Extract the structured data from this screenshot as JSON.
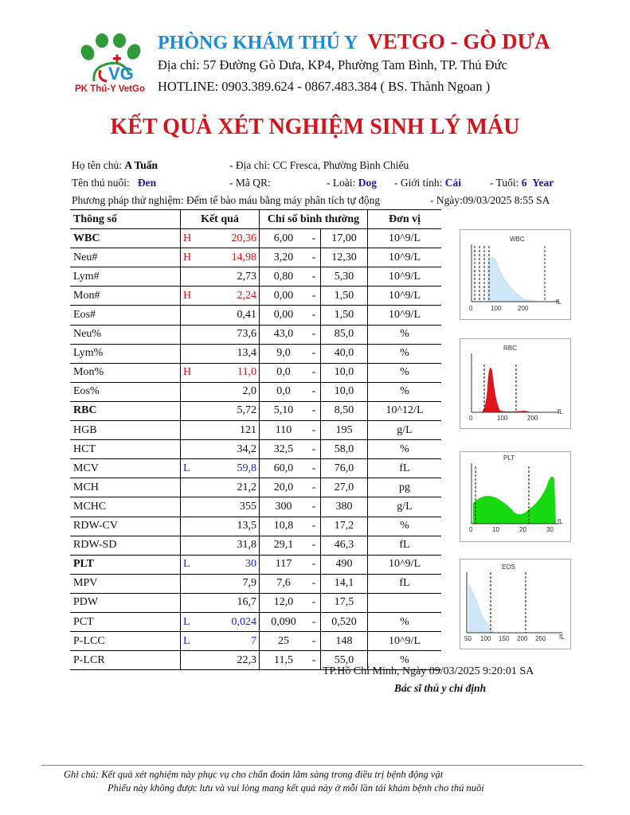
{
  "header": {
    "logo_text": "PK Thú-Y VetGo",
    "title_part1": "PHÒNG KHÁM THÚ Y",
    "title_part2": "VETGO - GÒ DƯA",
    "address": "Địa chỉ: 57 Đường Gò Dưa, KP4, Phường Tam Bình, TP. Thủ Đức",
    "hotline": "HOTLINE: 0903.389.624 - 0867.483.384 ( BS. Thành Ngoan )",
    "brand_colors": {
      "blue": "#1b8ad8",
      "red": "#d4131b",
      "green": "#2e9a3a"
    }
  },
  "document_title": "KẾT QUẢ XÉT NGHIỆM SINH LÝ MÁU",
  "info": {
    "owner_label": "Họ tên chủ:",
    "owner_value": "A Tuấn",
    "address_label": "- Địa chỉ:",
    "address_value": "CC Fresca, Phường Bình Chiểu",
    "pet_label": "Tên thú nuôi:",
    "pet_value": "Đen",
    "qr_label": "- Mã QR:",
    "species_label": "- Loài:",
    "species_value": "Dog",
    "sex_label": "- Giới tính:",
    "sex_value": "Cái",
    "age_label": "- Tuổi:",
    "age_value": "6",
    "age_unit": "Year",
    "method_label": "Phương pháp thử nghiệm:",
    "method_value": "Đếm tế bào máu bằng máy phân tích tự động",
    "date_label": "- Ngày:",
    "date_value": "09/03/2025 8:55 SA"
  },
  "table": {
    "headers": {
      "param": "Thông số",
      "result": "Kết quả",
      "normal": "Chỉ số bình thường",
      "unit": "Đơn vị"
    },
    "rows": [
      {
        "name": "WBC",
        "flag": "H",
        "value": "20,36",
        "low": "6,00",
        "high": "17,00",
        "unit": "10^9/L",
        "bold": true
      },
      {
        "name": "Neu#",
        "flag": "H",
        "value": "14,98",
        "low": "3,20",
        "high": "12,30",
        "unit": "10^9/L"
      },
      {
        "name": "Lym#",
        "flag": "",
        "value": "2,73",
        "low": "0,80",
        "high": "5,30",
        "unit": "10^9/L"
      },
      {
        "name": "Mon#",
        "flag": "H",
        "value": "2,24",
        "low": "0,00",
        "high": "1,50",
        "unit": "10^9/L"
      },
      {
        "name": "Eos#",
        "flag": "",
        "value": "0,41",
        "low": "0,00",
        "high": "1,50",
        "unit": "10^9/L"
      },
      {
        "name": "Neu%",
        "flag": "",
        "value": "73,6",
        "low": "43,0",
        "high": "85,0",
        "unit": "%"
      },
      {
        "name": "Lym%",
        "flag": "",
        "value": "13,4",
        "low": "9,0",
        "high": "40,0",
        "unit": "%"
      },
      {
        "name": "Mon%",
        "flag": "H",
        "value": "11,0",
        "low": "0,0",
        "high": "10,0",
        "unit": "%"
      },
      {
        "name": "Eos%",
        "flag": "",
        "value": "2,0",
        "low": "0,0",
        "high": "10,0",
        "unit": "%"
      },
      {
        "name": "RBC",
        "flag": "",
        "value": "5,72",
        "low": "5,10",
        "high": "8,50",
        "unit": "10^12/L",
        "bold": true
      },
      {
        "name": "HGB",
        "flag": "",
        "value": "121",
        "low": "110",
        "high": "195",
        "unit": "g/L"
      },
      {
        "name": "HCT",
        "flag": "",
        "value": "34,2",
        "low": "32,5",
        "high": "58,0",
        "unit": "%"
      },
      {
        "name": "MCV",
        "flag": "L",
        "value": "59,8",
        "low": "60,0",
        "high": "76,0",
        "unit": "fL"
      },
      {
        "name": "MCH",
        "flag": "",
        "value": "21,2",
        "low": "20,0",
        "high": "27,0",
        "unit": "pg"
      },
      {
        "name": "MCHC",
        "flag": "",
        "value": "355",
        "low": "300",
        "high": "380",
        "unit": "g/L"
      },
      {
        "name": "RDW-CV",
        "flag": "",
        "value": "13,5",
        "low": "10,8",
        "high": "17,2",
        "unit": "%"
      },
      {
        "name": "RDW-SD",
        "flag": "",
        "value": "31,8",
        "low": "29,1",
        "high": "46,3",
        "unit": "fL"
      },
      {
        "name": "PLT",
        "flag": "L",
        "value": "30",
        "low": "117",
        "high": "490",
        "unit": "10^9/L",
        "bold": true
      },
      {
        "name": "MPV",
        "flag": "",
        "value": "7,9",
        "low": "7,6",
        "high": "14,1",
        "unit": "fL"
      },
      {
        "name": "PDW",
        "flag": "",
        "value": "16,7",
        "low": "12,0",
        "high": "17,5",
        "unit": ""
      },
      {
        "name": "PCT",
        "flag": "L",
        "value": "0,024",
        "low": "0,090",
        "high": "0,520",
        "unit": "%"
      },
      {
        "name": "P-LCC",
        "flag": "L",
        "value": "7",
        "low": "25",
        "high": "148",
        "unit": "10^9/L"
      },
      {
        "name": "P-LCR",
        "flag": "",
        "value": "22,3",
        "low": "11,5",
        "high": "55,0",
        "unit": "%"
      }
    ]
  },
  "histograms": {
    "wbc": {
      "title": "WBC",
      "ticks": [
        "0",
        "100",
        "200"
      ],
      "unit": "fL",
      "color": "#cfe6f7"
    },
    "rbc": {
      "title": "RBC",
      "ticks": [
        "0",
        "100",
        "200"
      ],
      "unit": "fL",
      "color": "#e0141b"
    },
    "plt": {
      "title": "PLT",
      "ticks": [
        "0",
        "10",
        "20",
        "30"
      ],
      "unit": "fL",
      "color": "#16d90f"
    },
    "eos": {
      "title": "EOS",
      "ticks": [
        "50",
        "100",
        "150",
        "200",
        "250"
      ],
      "unit": "fL",
      "color": "#cfe6f7"
    }
  },
  "signature": {
    "date_line": "TP.Hồ Chí Minh, Ngày  09/03/2025 9:20:01 SA",
    "title": "Bác sĩ thú y chỉ định"
  },
  "footer": {
    "note1": "Ghi chú: Kết quả xét nghiệm này phục vụ cho chẩn đoán lâm sàng trong điều trị bệnh động vật",
    "note2": "Phiếu này không được lưu và vui lòng mang kết quả này ở mỗi lần tái khám bệnh cho thú nuôi"
  }
}
